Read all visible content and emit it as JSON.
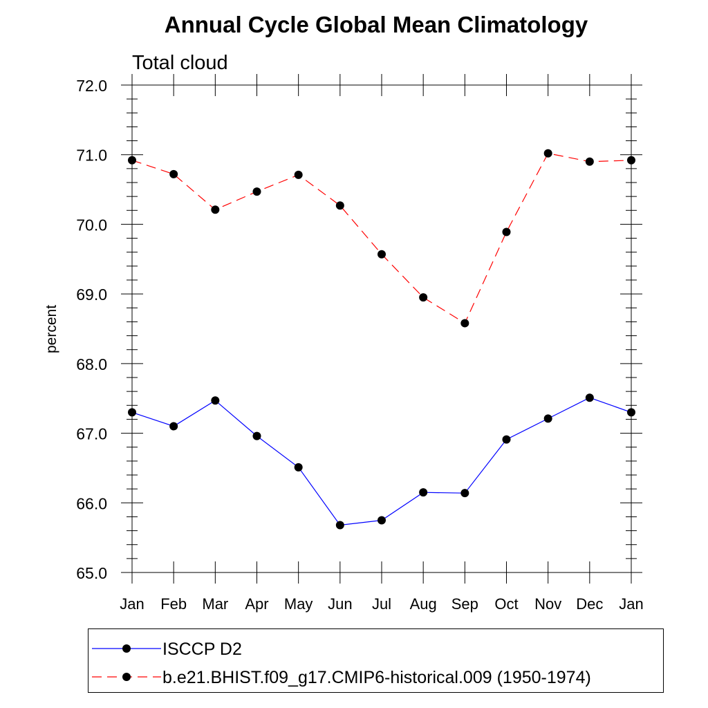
{
  "chart_data": {
    "type": "line",
    "title": "Annual Cycle Global Mean Climatology",
    "subtitle": "Total cloud",
    "xlabel": "",
    "ylabel": "percent",
    "categories": [
      "Jan",
      "Feb",
      "Mar",
      "Apr",
      "May",
      "Jun",
      "Jul",
      "Aug",
      "Sep",
      "Oct",
      "Nov",
      "Dec",
      "Jan"
    ],
    "ylim": [
      65.0,
      72.0
    ],
    "yticks": [
      "65.0",
      "66.0",
      "67.0",
      "68.0",
      "69.0",
      "70.0",
      "71.0",
      "72.0"
    ],
    "grid": false,
    "legend_position": "bottom",
    "series": [
      {
        "name": "ISCCP D2",
        "color": "#0000ff",
        "line_style": "solid",
        "marker": "filled-circle",
        "values": [
          67.3,
          67.1,
          67.47,
          66.96,
          66.51,
          65.68,
          65.75,
          66.15,
          66.14,
          66.91,
          67.21,
          67.51,
          67.3
        ]
      },
      {
        "name": "b.e21.BHIST.f09_g17.CMIP6-historical.009 (1950-1974)",
        "color": "#ff0000",
        "line_style": "dashed",
        "marker": "filled-circle",
        "values": [
          70.92,
          70.72,
          70.21,
          70.47,
          70.71,
          70.27,
          69.57,
          68.95,
          68.58,
          69.89,
          71.02,
          70.9,
          70.92
        ]
      }
    ]
  }
}
